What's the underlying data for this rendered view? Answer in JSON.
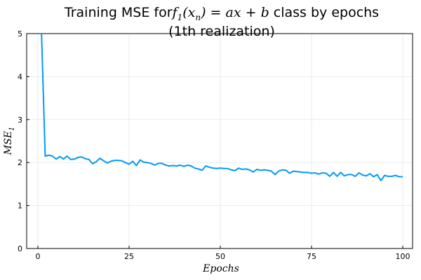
{
  "chart_data": {
    "type": "line",
    "title_line1_prefix": "Training MSE for",
    "title_line1_math": "f",
    "title_line1_sub": "1",
    "title_line1_math_rest": "(x",
    "title_line1_math_sub": "n",
    "title_line1_math_end": ") = ax + b",
    "title_line1_suffix": " class by epochs",
    "title_line2": "(1th realization)",
    "xlabel": "Epochs",
    "ylabel": "MSE",
    "ylabel_sub": "1",
    "xlim": [
      0,
      100
    ],
    "ylim": [
      0,
      5
    ],
    "xticks": [
      0,
      25,
      50,
      75,
      100
    ],
    "yticks": [
      0,
      1,
      2,
      3,
      4,
      5
    ],
    "grid": true,
    "legend": "none",
    "series_color": "#009af9",
    "x": [
      1,
      2,
      3,
      4,
      5,
      6,
      7,
      8,
      9,
      10,
      11,
      12,
      13,
      14,
      15,
      16,
      17,
      18,
      19,
      20,
      21,
      22,
      23,
      24,
      25,
      26,
      27,
      28,
      29,
      30,
      31,
      32,
      33,
      34,
      35,
      36,
      37,
      38,
      39,
      40,
      41,
      42,
      43,
      44,
      45,
      46,
      47,
      48,
      49,
      50,
      51,
      52,
      53,
      54,
      55,
      56,
      57,
      58,
      59,
      60,
      61,
      62,
      63,
      64,
      65,
      66,
      67,
      68,
      69,
      70,
      71,
      72,
      73,
      74,
      75,
      76,
      77,
      78,
      79,
      80,
      81,
      82,
      83,
      84,
      85,
      86,
      87,
      88,
      89,
      90,
      91,
      92,
      93,
      94,
      95,
      96,
      97,
      98,
      99,
      100
    ],
    "y": [
      5.0,
      2.15,
      2.17,
      2.15,
      2.08,
      2.14,
      2.08,
      2.15,
      2.07,
      2.08,
      2.12,
      2.13,
      2.09,
      2.07,
      1.97,
      2.02,
      2.1,
      2.04,
      1.99,
      2.03,
      2.05,
      2.05,
      2.04,
      2.0,
      1.96,
      2.03,
      1.93,
      2.06,
      2.01,
      2.0,
      1.98,
      1.94,
      1.98,
      1.98,
      1.94,
      1.92,
      1.93,
      1.92,
      1.94,
      1.91,
      1.94,
      1.92,
      1.87,
      1.85,
      1.82,
      1.92,
      1.89,
      1.87,
      1.86,
      1.87,
      1.86,
      1.86,
      1.83,
      1.81,
      1.87,
      1.84,
      1.85,
      1.83,
      1.78,
      1.84,
      1.82,
      1.83,
      1.82,
      1.8,
      1.72,
      1.8,
      1.83,
      1.82,
      1.75,
      1.8,
      1.79,
      1.78,
      1.77,
      1.77,
      1.75,
      1.76,
      1.73,
      1.76,
      1.75,
      1.68,
      1.77,
      1.68,
      1.77,
      1.69,
      1.72,
      1.72,
      1.68,
      1.76,
      1.71,
      1.69,
      1.74,
      1.67,
      1.72,
      1.58,
      1.7,
      1.68,
      1.68,
      1.7,
      1.67,
      1.67
    ]
  }
}
